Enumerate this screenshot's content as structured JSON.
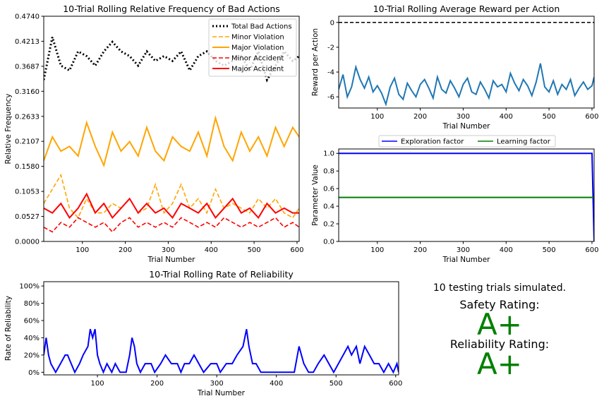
{
  "summary": {
    "trials_text": "10 testing trials simulated.",
    "safety_label": "Safety Rating:",
    "safety_grade": "A+",
    "reliability_label": "Reliability Rating:",
    "reliability_grade": "A+",
    "grade_color": "#008000"
  },
  "chart_data": [
    {
      "id": "bad_actions",
      "type": "line",
      "title": "10-Trial Rolling Relative Frequency of Bad Actions",
      "xlabel": "Trial Number",
      "ylabel": "Relative Frequency",
      "xlim": [
        10,
        605
      ],
      "ylim": [
        0,
        0.474
      ],
      "xticks": [
        100,
        200,
        300,
        400,
        500,
        600
      ],
      "yticks": [
        0.0,
        0.0527,
        0.1053,
        0.158,
        0.2107,
        0.2633,
        0.316,
        0.3687,
        0.4213,
        0.474
      ],
      "yticklabels": [
        "0.0000",
        "0.0527",
        "0.1053",
        "0.1580",
        "0.2107",
        "0.2633",
        "0.3160",
        "0.3687",
        "0.4213",
        "0.4740"
      ],
      "legend_position": "top-right",
      "series": [
        {
          "name": "Total Bad Actions",
          "color": "#000000",
          "style": "dotted",
          "x": [
            10,
            30,
            50,
            70,
            90,
            110,
            130,
            150,
            170,
            190,
            210,
            230,
            250,
            270,
            290,
            310,
            330,
            350,
            370,
            390,
            410,
            430,
            450,
            470,
            490,
            510,
            530,
            550,
            570,
            590,
            605
          ],
          "y": [
            0.34,
            0.43,
            0.37,
            0.36,
            0.4,
            0.39,
            0.37,
            0.4,
            0.42,
            0.4,
            0.39,
            0.37,
            0.4,
            0.38,
            0.39,
            0.38,
            0.4,
            0.36,
            0.39,
            0.4,
            0.38,
            0.37,
            0.38,
            0.39,
            0.36,
            0.4,
            0.34,
            0.37,
            0.4,
            0.38,
            0.39
          ]
        },
        {
          "name": "Minor Violation",
          "color": "#FFA500",
          "style": "dashed",
          "x": [
            10,
            30,
            50,
            70,
            90,
            110,
            130,
            150,
            170,
            190,
            210,
            230,
            250,
            270,
            290,
            310,
            330,
            350,
            370,
            390,
            410,
            430,
            450,
            470,
            490,
            510,
            530,
            550,
            570,
            590,
            605
          ],
          "y": [
            0.08,
            0.11,
            0.14,
            0.07,
            0.05,
            0.09,
            0.06,
            0.06,
            0.08,
            0.07,
            0.09,
            0.06,
            0.07,
            0.12,
            0.06,
            0.08,
            0.12,
            0.07,
            0.09,
            0.06,
            0.11,
            0.07,
            0.08,
            0.07,
            0.06,
            0.09,
            0.07,
            0.09,
            0.06,
            0.05,
            0.07
          ]
        },
        {
          "name": "Major Violation",
          "color": "#FFA500",
          "style": "solid",
          "x": [
            10,
            30,
            50,
            70,
            90,
            110,
            130,
            150,
            170,
            190,
            210,
            230,
            250,
            270,
            290,
            310,
            330,
            350,
            370,
            390,
            410,
            430,
            450,
            470,
            490,
            510,
            530,
            550,
            570,
            590,
            605
          ],
          "y": [
            0.17,
            0.22,
            0.19,
            0.2,
            0.18,
            0.25,
            0.2,
            0.16,
            0.23,
            0.19,
            0.21,
            0.18,
            0.24,
            0.19,
            0.17,
            0.22,
            0.2,
            0.19,
            0.23,
            0.18,
            0.26,
            0.2,
            0.17,
            0.23,
            0.19,
            0.22,
            0.18,
            0.24,
            0.2,
            0.24,
            0.22
          ]
        },
        {
          "name": "Minor Accident",
          "color": "#FF0000",
          "style": "dashed",
          "x": [
            10,
            30,
            50,
            70,
            90,
            110,
            130,
            150,
            170,
            190,
            210,
            230,
            250,
            270,
            290,
            310,
            330,
            350,
            370,
            390,
            410,
            430,
            450,
            470,
            490,
            510,
            530,
            550,
            570,
            590,
            605
          ],
          "y": [
            0.03,
            0.02,
            0.04,
            0.03,
            0.05,
            0.04,
            0.03,
            0.04,
            0.02,
            0.04,
            0.05,
            0.03,
            0.04,
            0.03,
            0.04,
            0.03,
            0.05,
            0.04,
            0.03,
            0.04,
            0.03,
            0.05,
            0.04,
            0.03,
            0.04,
            0.03,
            0.04,
            0.05,
            0.03,
            0.04,
            0.03
          ]
        },
        {
          "name": "Major Accident",
          "color": "#FF0000",
          "style": "solid",
          "x": [
            10,
            30,
            50,
            70,
            90,
            110,
            130,
            150,
            170,
            190,
            210,
            230,
            250,
            270,
            290,
            310,
            330,
            350,
            370,
            390,
            410,
            430,
            450,
            470,
            490,
            510,
            530,
            550,
            570,
            590,
            605
          ],
          "y": [
            0.07,
            0.06,
            0.08,
            0.05,
            0.07,
            0.1,
            0.06,
            0.08,
            0.05,
            0.07,
            0.09,
            0.06,
            0.08,
            0.06,
            0.07,
            0.05,
            0.08,
            0.07,
            0.06,
            0.08,
            0.05,
            0.07,
            0.09,
            0.06,
            0.07,
            0.05,
            0.08,
            0.06,
            0.07,
            0.06,
            0.06
          ]
        }
      ]
    },
    {
      "id": "reward",
      "type": "line",
      "title": "10-Trial Rolling Average Reward per Action",
      "xlabel": "Trial Number",
      "ylabel": "Reward per Action",
      "xlim": [
        10,
        605
      ],
      "ylim": [
        -6.9,
        0.5
      ],
      "xticks": [
        100,
        200,
        300,
        400,
        500,
        600
      ],
      "yticks": [
        -6,
        -4,
        -2,
        0
      ],
      "reference_line": {
        "y": 0,
        "style": "dashed",
        "color": "#000000"
      },
      "series": [
        {
          "color": "#1f77b4",
          "x": [
            10,
            20,
            30,
            40,
            50,
            60,
            70,
            80,
            90,
            100,
            110,
            120,
            130,
            140,
            150,
            160,
            170,
            180,
            190,
            200,
            210,
            220,
            230,
            240,
            250,
            260,
            270,
            280,
            290,
            300,
            310,
            320,
            330,
            340,
            350,
            360,
            370,
            380,
            390,
            400,
            410,
            420,
            430,
            440,
            450,
            460,
            470,
            480,
            490,
            500,
            510,
            520,
            530,
            540,
            550,
            560,
            570,
            580,
            590,
            600,
            605
          ],
          "y": [
            -5.4,
            -4.2,
            -6.0,
            -5.2,
            -3.6,
            -4.6,
            -5.3,
            -4.4,
            -5.6,
            -5.1,
            -5.7,
            -6.6,
            -5.2,
            -4.5,
            -5.8,
            -6.2,
            -4.9,
            -5.5,
            -6.0,
            -5.0,
            -4.6,
            -5.3,
            -6.1,
            -4.4,
            -5.4,
            -5.7,
            -4.7,
            -5.3,
            -6.0,
            -5.0,
            -4.5,
            -5.6,
            -5.8,
            -4.8,
            -5.4,
            -6.1,
            -4.7,
            -5.2,
            -5.0,
            -5.6,
            -4.1,
            -4.9,
            -5.5,
            -4.6,
            -5.1,
            -5.9,
            -4.8,
            -3.3,
            -5.2,
            -5.6,
            -4.7,
            -5.8,
            -5.0,
            -5.4,
            -4.6,
            -5.9,
            -5.3,
            -4.8,
            -5.4,
            -5.1,
            -4.4
          ]
        }
      ]
    },
    {
      "id": "parameters",
      "type": "line",
      "xlabel": "Trial Number",
      "ylabel": "Parameter Value",
      "xlim": [
        10,
        605
      ],
      "ylim": [
        0,
        1.05
      ],
      "xticks": [
        100,
        200,
        300,
        400,
        500,
        600
      ],
      "yticks": [
        0.0,
        0.2,
        0.4,
        0.6,
        0.8,
        1.0
      ],
      "yticklabels": [
        "0.0",
        "0.2",
        "0.4",
        "0.6",
        "0.8",
        "1.0"
      ],
      "legend_position": "top-center",
      "series": [
        {
          "name": "Exploration factor",
          "color": "#0000FF",
          "x": [
            10,
            600,
            600,
            605
          ],
          "y": [
            1.0,
            1.0,
            1.0,
            0.0
          ]
        },
        {
          "name": "Learning factor",
          "color": "#008000",
          "x": [
            10,
            605
          ],
          "y": [
            0.5,
            0.5
          ]
        }
      ]
    },
    {
      "id": "reliability",
      "type": "line",
      "title": "10-Trial Rolling Rate of Reliability",
      "xlabel": "Trial Number",
      "ylabel": "Rate of Reliability",
      "xlim": [
        10,
        605
      ],
      "ylim": [
        -0.03,
        1.05
      ],
      "xticks": [
        100,
        200,
        300,
        400,
        500,
        600
      ],
      "yticks": [
        0,
        0.2,
        0.4,
        0.6,
        0.8,
        1.0
      ],
      "yticklabels": [
        "0%",
        "20%",
        "40%",
        "60%",
        "80%",
        "100%"
      ],
      "series": [
        {
          "color": "#0000FF",
          "x": [
            10,
            14,
            18,
            22,
            30,
            38,
            46,
            50,
            56,
            62,
            70,
            76,
            84,
            88,
            92,
            96,
            100,
            104,
            110,
            116,
            124,
            130,
            138,
            148,
            154,
            158,
            162,
            166,
            172,
            180,
            190,
            196,
            206,
            214,
            224,
            234,
            240,
            246,
            254,
            262,
            270,
            278,
            290,
            300,
            306,
            316,
            326,
            334,
            344,
            350,
            354,
            360,
            366,
            374,
            384,
            394,
            404,
            416,
            430,
            438,
            446,
            454,
            462,
            470,
            480,
            488,
            496,
            504,
            512,
            520,
            526,
            534,
            540,
            548,
            556,
            564,
            572,
            580,
            588,
            596,
            602,
            605
          ],
          "y": [
            0.2,
            0.4,
            0.2,
            0.1,
            0.0,
            0.1,
            0.2,
            0.2,
            0.1,
            0.0,
            0.1,
            0.2,
            0.3,
            0.5,
            0.4,
            0.5,
            0.2,
            0.1,
            0.0,
            0.1,
            0.0,
            0.1,
            0.0,
            0.0,
            0.2,
            0.4,
            0.3,
            0.1,
            0.0,
            0.1,
            0.1,
            0.0,
            0.1,
            0.2,
            0.1,
            0.1,
            0.0,
            0.1,
            0.1,
            0.2,
            0.1,
            0.0,
            0.1,
            0.1,
            0.0,
            0.1,
            0.1,
            0.2,
            0.3,
            0.5,
            0.3,
            0.1,
            0.1,
            0.0,
            0.0,
            0.0,
            0.0,
            0.0,
            0.0,
            0.3,
            0.1,
            0.0,
            0.0,
            0.1,
            0.2,
            0.1,
            0.0,
            0.1,
            0.2,
            0.3,
            0.2,
            0.3,
            0.1,
            0.3,
            0.2,
            0.1,
            0.1,
            0.0,
            0.1,
            0.0,
            0.1,
            0.0
          ]
        }
      ]
    }
  ]
}
